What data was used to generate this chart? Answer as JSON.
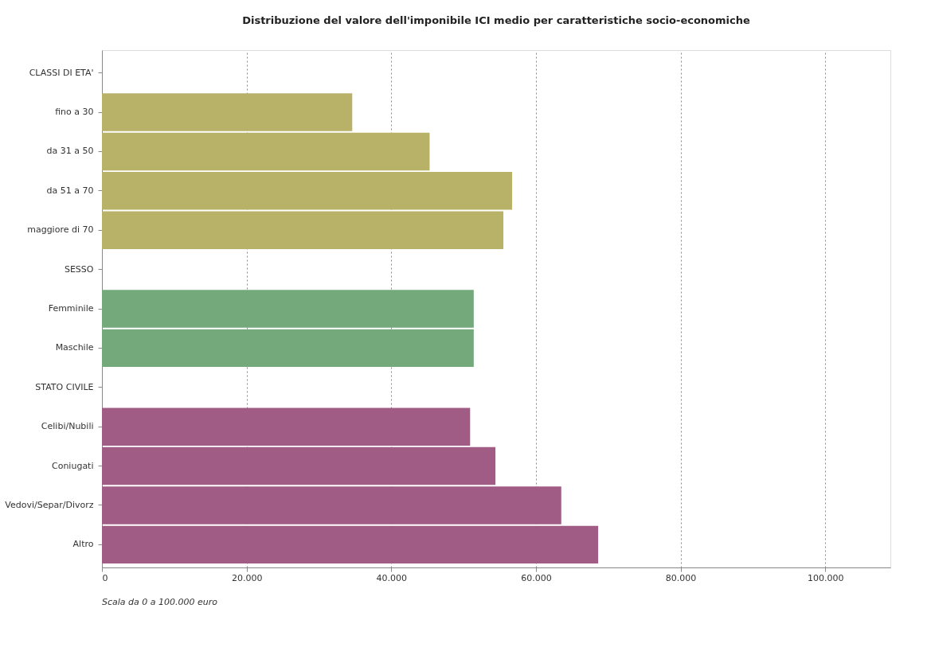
{
  "chart_data": {
    "type": "bar",
    "orientation": "horizontal",
    "title": "Distribuzione del valore dell'imponibile ICI medio per caratteristiche socio-economiche",
    "categories": [
      "CLASSI DI ETA'",
      "fino a 30",
      "da 31 a 50",
      "da 51 a 70",
      "maggiore di 70",
      "SESSO",
      "Femminile",
      "Maschile",
      "STATO CIVILE",
      "Celibi/Nubili",
      "Coniugati",
      "Vedovi/Separ/Divorz",
      "Altro"
    ],
    "values": [
      null,
      34600,
      45300,
      56700,
      55500,
      null,
      51400,
      51400,
      null,
      50900,
      54400,
      63500,
      68600
    ],
    "colors": [
      "#ffffff",
      "#b8b268",
      "#b8b268",
      "#b8b268",
      "#b8b268",
      "#ffffff",
      "#74a97c",
      "#74a97c",
      "#ffffff",
      "#a05c85",
      "#a05c85",
      "#a05c85",
      "#a05c85"
    ],
    "xlim": [
      0,
      109000
    ],
    "xticks": [
      0,
      {
        "value": 20000,
        "label": "20.000"
      },
      {
        "value": 40000,
        "label": "40.000"
      },
      {
        "value": 60000,
        "label": "60.000"
      },
      {
        "value": 80000,
        "label": "80.000"
      },
      {
        "value": 100000,
        "label": "100.000"
      }
    ],
    "grid": "x",
    "annotations": [
      "Scala da 0 a 100.000 euro"
    ]
  }
}
